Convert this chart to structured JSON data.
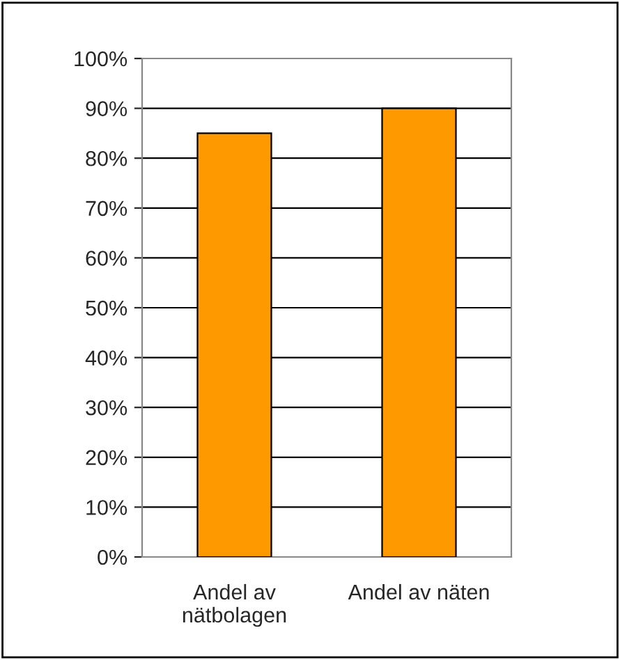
{
  "chart_data": {
    "type": "bar",
    "categories": [
      "Andel av\nnätbolagen",
      "Andel av näten"
    ],
    "values": [
      85,
      90
    ],
    "color": "#ff9900",
    "ylim": [
      0,
      100
    ],
    "yticks": [
      {
        "value": 0,
        "label": "0%"
      },
      {
        "value": 10,
        "label": "10%"
      },
      {
        "value": 20,
        "label": "20%"
      },
      {
        "value": 30,
        "label": "30%"
      },
      {
        "value": 40,
        "label": "40%"
      },
      {
        "value": 50,
        "label": "50%"
      },
      {
        "value": 60,
        "label": "60%"
      },
      {
        "value": 70,
        "label": "70%"
      },
      {
        "value": 80,
        "label": "80%"
      },
      {
        "value": 90,
        "label": "90%"
      },
      {
        "value": 100,
        "label": "100%"
      }
    ],
    "grid": "y",
    "legend": false
  }
}
